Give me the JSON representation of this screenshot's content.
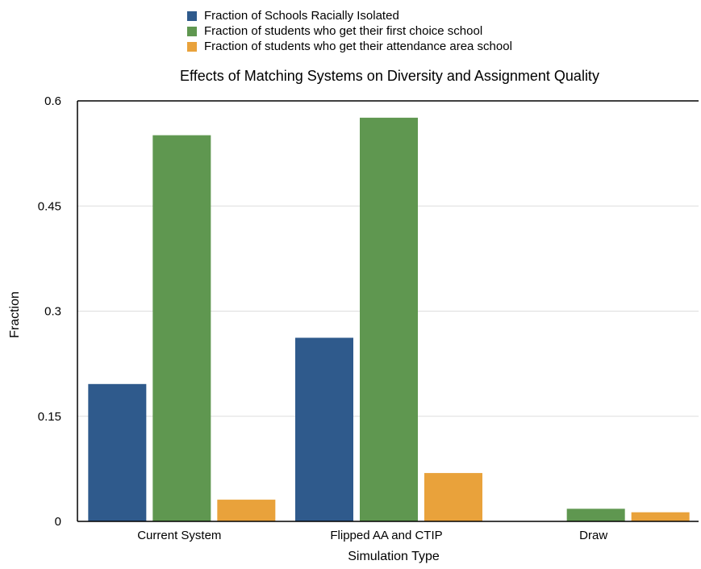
{
  "chart_data": {
    "type": "bar",
    "title": "Effects of Matching Systems on Diversity and Assignment Quality",
    "xlabel": "Simulation Type",
    "ylabel": "Fraction",
    "categories": [
      "Current System",
      "Flipped AA and CTIP",
      "Draw"
    ],
    "series": [
      {
        "name": "Fraction of Schools Racially Isolated",
        "color": "#2f5a8c",
        "values": [
          0.196,
          0.262,
          0
        ]
      },
      {
        "name": "Fraction of students who get their first choice school",
        "color": "#5f9750",
        "values": [
          0.551,
          0.576,
          0.018
        ]
      },
      {
        "name": "Fraction of students who get their attendance area school",
        "color": "#e9a23b",
        "values": [
          0.031,
          0.069,
          0.013
        ]
      }
    ],
    "ylim": [
      0,
      0.6
    ],
    "yticks": [
      0,
      0.15,
      0.3,
      0.45,
      0.6
    ],
    "ytick_labels": [
      "0",
      "0.15",
      "0.3",
      "0.45",
      "0.6"
    ],
    "grid": true,
    "legend_position": "top"
  }
}
